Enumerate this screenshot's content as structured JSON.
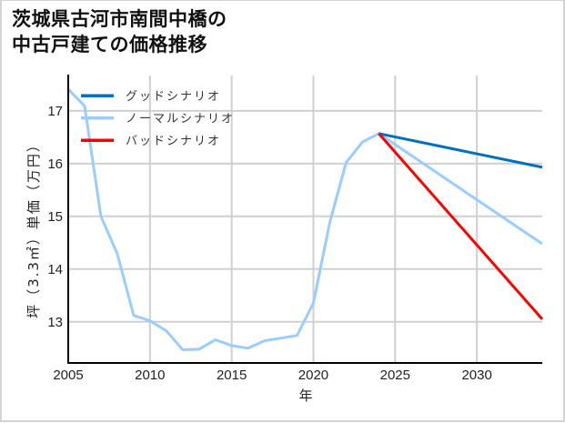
{
  "title": {
    "line1": "茨城県古河市南間中橋の",
    "line2": "中古戸建ての価格推移"
  },
  "chart_data": {
    "type": "line",
    "title": "茨城県古河市南間中橋の中古戸建ての価格推移",
    "xlabel": "年",
    "ylabel": "坪（3.3㎡）単価（万円）",
    "xlim": [
      2005,
      2034
    ],
    "ylim": [
      12.22,
      17.67
    ],
    "xticks": [
      2005,
      2010,
      2015,
      2020,
      2025,
      2030
    ],
    "yticks": [
      13,
      14,
      15,
      16,
      17
    ],
    "grid": true,
    "legend_position": "upper left",
    "series": [
      {
        "name": "グッドシナリオ",
        "color": "#0070c0",
        "x": [
          2024,
          2034
        ],
        "values": [
          16.57,
          15.93
        ]
      },
      {
        "name": "ノーマルシナリオ",
        "color": "#99ccff",
        "x": [
          2005,
          2006,
          2007,
          2008,
          2009,
          2010,
          2011,
          2012,
          2013,
          2014,
          2015,
          2016,
          2017,
          2018,
          2019,
          2020,
          2021,
          2022,
          2023,
          2024,
          2034
        ],
        "values": [
          17.41,
          17.09,
          15.0,
          14.29,
          13.12,
          13.02,
          12.83,
          12.47,
          12.48,
          12.66,
          12.55,
          12.5,
          12.64,
          12.69,
          12.74,
          13.36,
          14.88,
          16.02,
          16.41,
          16.57,
          14.48
        ]
      },
      {
        "name": "バッドシナリオ",
        "color": "#ff0000",
        "x": [
          2024,
          2034
        ],
        "values": [
          16.57,
          13.05
        ]
      }
    ]
  }
}
